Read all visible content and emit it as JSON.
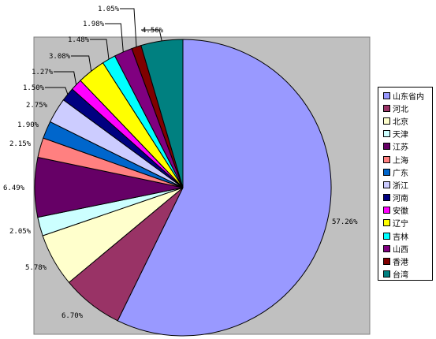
{
  "chart_data": {
    "type": "pie",
    "title": "",
    "categories": [
      "山东省内",
      "河北",
      "北京",
      "天津",
      "江苏",
      "上海",
      "广东",
      "浙江",
      "河南",
      "安徽",
      "辽宁",
      "吉林",
      "山西",
      "香港",
      "台湾"
    ],
    "values": [
      57.26,
      6.7,
      5.78,
      2.05,
      6.49,
      2.15,
      1.9,
      2.75,
      1.5,
      1.27,
      3.08,
      1.48,
      1.98,
      1.05,
      4.56
    ],
    "value_labels": [
      "57.26%",
      "6.70%",
      "5.78%",
      "2.05%",
      "6.49%",
      "2.15%",
      "1.90%",
      "2.75%",
      "1.50%",
      "1.27%",
      "3.08%",
      "1.48%",
      "1.98%",
      "1.05%",
      "4.56%"
    ],
    "colors": [
      "#9999ff",
      "#993366",
      "#ffffcc",
      "#ccffff",
      "#660066",
      "#ff8080",
      "#0066cc",
      "#ccccff",
      "#000080",
      "#ff00ff",
      "#ffff00",
      "#00ffff",
      "#800080",
      "#800000",
      "#008080"
    ],
    "start_angle_deg": 0,
    "direction": "clockwise",
    "legend_position": "right",
    "plot_background": "#c0c0c0"
  }
}
